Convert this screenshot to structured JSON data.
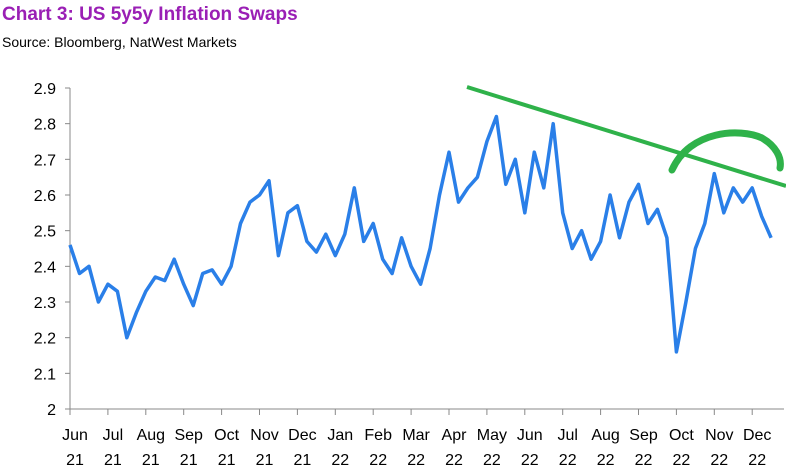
{
  "chart_data": {
    "type": "line",
    "title": "Chart 3: US 5y5y Inflation Swaps",
    "subtitle": "Source:  Bloomberg, NatWest Markets",
    "color": "#2a7fe8",
    "ylim": [
      2,
      2.9
    ],
    "yticks": [
      {
        "value": 2,
        "label": "2"
      },
      2.1,
      2.2,
      2.3,
      2.4,
      2.5,
      2.6,
      2.7,
      2.8,
      2.9
    ],
    "xtick_labels": [
      [
        "Jun",
        "21"
      ],
      [
        "Jul",
        "21"
      ],
      [
        "Aug",
        "21"
      ],
      [
        "Sep",
        "21"
      ],
      [
        "Oct",
        "21"
      ],
      [
        "Nov",
        "21"
      ],
      [
        "Dec",
        "21"
      ],
      [
        "Jan",
        "22"
      ],
      [
        "Feb",
        "22"
      ],
      [
        "Mar",
        "22"
      ],
      [
        "Apr",
        "22"
      ],
      [
        "May",
        "22"
      ],
      [
        "Jun",
        "22"
      ],
      [
        "Jul",
        "22"
      ],
      [
        "Aug",
        "22"
      ],
      [
        "Sep",
        "22"
      ],
      [
        "Oct",
        "22"
      ],
      [
        "Nov",
        "22"
      ],
      [
        "Dec",
        "22"
      ]
    ],
    "values": [
      2.46,
      2.38,
      2.4,
      2.3,
      2.35,
      2.33,
      2.2,
      2.27,
      2.33,
      2.37,
      2.36,
      2.42,
      2.35,
      2.29,
      2.38,
      2.39,
      2.35,
      2.4,
      2.52,
      2.58,
      2.6,
      2.64,
      2.43,
      2.55,
      2.57,
      2.47,
      2.44,
      2.49,
      2.43,
      2.49,
      2.62,
      2.47,
      2.52,
      2.42,
      2.38,
      2.48,
      2.4,
      2.35,
      2.45,
      2.6,
      2.72,
      2.58,
      2.62,
      2.65,
      2.75,
      2.82,
      2.63,
      2.7,
      2.55,
      2.72,
      2.62,
      2.8,
      2.55,
      2.45,
      2.5,
      2.42,
      2.47,
      2.6,
      2.48,
      2.58,
      2.63,
      2.52,
      2.56,
      2.48,
      2.16,
      2.3,
      2.45,
      2.52,
      2.66,
      2.55,
      2.62,
      2.58,
      2.62,
      2.54,
      2.48
    ]
  }
}
